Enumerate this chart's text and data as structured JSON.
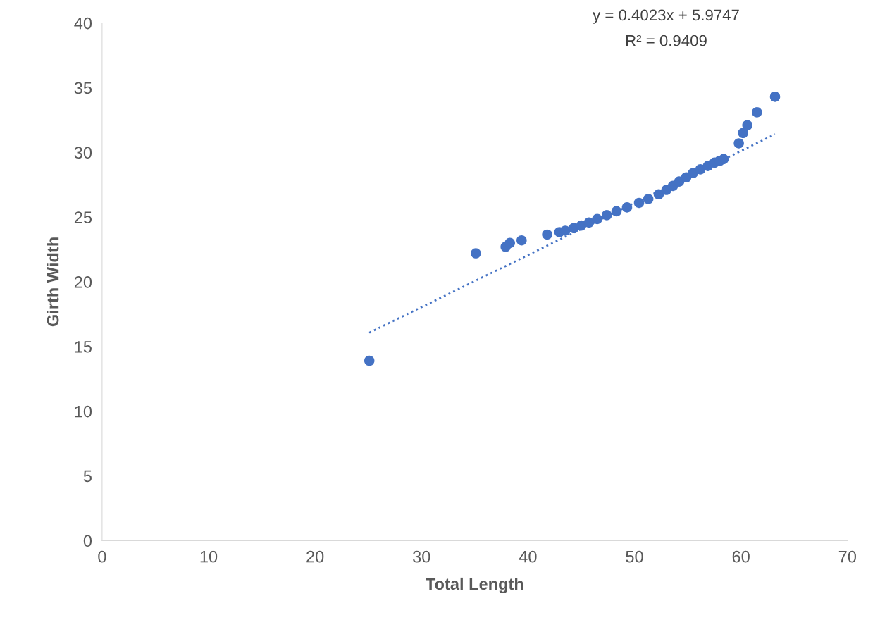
{
  "chart_data": {
    "type": "scatter",
    "xlabel": "Total Length",
    "ylabel": "Girth Width",
    "annotations": [
      "y = 0.4023x + 5.9747",
      "R² = 0.9409"
    ],
    "series": [
      {
        "color": "#4472c4",
        "marker": "circle",
        "x": [
          25.1,
          35.1,
          37.9,
          38.3,
          39.4,
          41.8,
          42.95,
          43.5,
          44.3,
          45.0,
          45.73,
          46.5,
          47.4,
          48.31,
          49.3,
          50.43,
          51.3,
          52.28,
          53.0,
          53.61,
          54.2,
          54.86,
          55.5,
          56.19,
          56.9,
          57.51,
          58.0,
          58.37,
          59.8,
          60.2,
          60.6,
          61.5,
          63.2
        ],
        "values": [
          13.9,
          22.2,
          22.7,
          23.0,
          23.2,
          23.65,
          23.84,
          23.95,
          24.15,
          24.35,
          24.58,
          24.85,
          25.15,
          25.45,
          25.75,
          26.1,
          26.4,
          26.76,
          27.1,
          27.41,
          27.75,
          28.07,
          28.4,
          28.69,
          28.95,
          29.21,
          29.35,
          29.48,
          30.7,
          31.5,
          32.1,
          33.1,
          34.3
        ]
      },
      {
        "type": "line",
        "color": "#4472c4",
        "line_style": "dotted",
        "marker": "none",
        "x": [
          25.1,
          63.2
        ],
        "values": [
          16.07,
          31.4
        ]
      }
    ],
    "xlim": [
      0,
      70
    ],
    "xticks": [
      0,
      10,
      20,
      30,
      40,
      50,
      60,
      70
    ],
    "ylim": [
      0,
      40
    ],
    "yticks": [
      0,
      5,
      10,
      15,
      20,
      25,
      30,
      35,
      40
    ],
    "grid": false,
    "legend": false
  }
}
